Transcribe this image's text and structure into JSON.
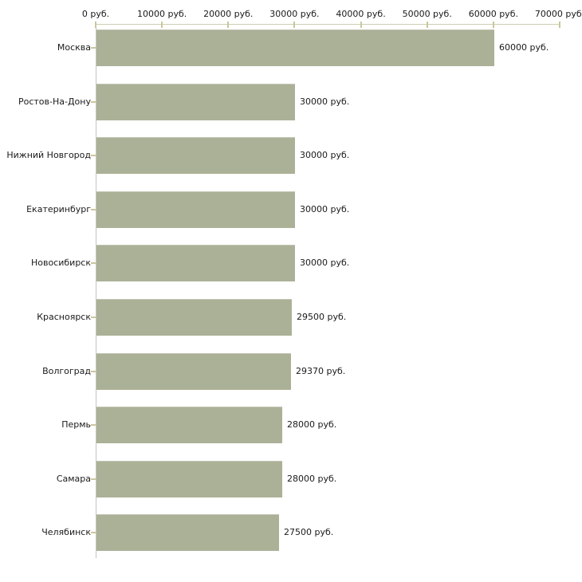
{
  "chart_data": {
    "type": "bar",
    "orientation": "horizontal",
    "title": "",
    "xlabel": "",
    "ylabel": "",
    "categories": [
      "Москва",
      "Ростов-На-Дону",
      "Нижний Новгород",
      "Екатеринбург",
      "Новосибирск",
      "Красноярск",
      "Волгоград",
      "Пермь",
      "Самара",
      "Челябинск"
    ],
    "values": [
      60000,
      30000,
      30000,
      30000,
      30000,
      29500,
      29370,
      28000,
      28000,
      27500
    ],
    "value_labels": [
      "60000 руб.",
      "30000 руб.",
      "30000 руб.",
      "30000 руб.",
      "30000 руб.",
      "29500 руб.",
      "29370 руб.",
      "28000 руб.",
      "28000 руб.",
      "27500 руб."
    ],
    "xlim": [
      0,
      70000
    ],
    "x_ticks": [
      0,
      10000,
      20000,
      30000,
      40000,
      50000,
      60000,
      70000
    ],
    "x_tick_labels": [
      "0 руб.",
      "10000 руб.",
      "20000 руб.",
      "30000 руб.",
      "40000 руб.",
      "50000 руб.",
      "60000 руб.",
      "70000 руб."
    ],
    "grid": "off",
    "legend": "none",
    "colors": {
      "bar_fill": "#abb197",
      "x_axis_line": "#cfcdb2",
      "y_axis_line": "#c4c4c4",
      "tick_mark": "#cbc69b",
      "text": "#1a1a1a",
      "background": "#ffffff"
    }
  }
}
